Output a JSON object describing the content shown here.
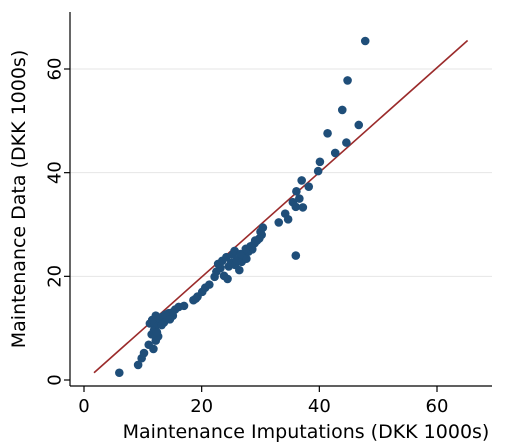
{
  "chart_data": {
    "type": "scatter",
    "title": "",
    "xlabel": "Maintenance Imputations (DKK 1000s)",
    "ylabel": "Maintenance Data (DKK 1000s)",
    "xlim": [
      0,
      70
    ],
    "ylim": [
      0,
      70
    ],
    "x_ticks": [
      0,
      20,
      40,
      60
    ],
    "y_ticks": [
      0,
      20,
      40,
      60
    ],
    "x_tick_labels": [
      "0",
      "20",
      "40",
      "60"
    ],
    "y_tick_labels": [
      "0",
      "20",
      "40",
      "60"
    ],
    "grid": "horizontal",
    "colors": {
      "points": "#1f4e79",
      "fit_line": "#9b2b2b",
      "grid": "#e6e6e6",
      "axis": "#000000"
    },
    "series": [
      {
        "type": "scatter",
        "points": [
          [
            6.0,
            1.4
          ],
          [
            9.2,
            2.9
          ],
          [
            9.8,
            4.2
          ],
          [
            10.2,
            5.2
          ],
          [
            11.0,
            6.8
          ],
          [
            11.8,
            6.0
          ],
          [
            12.2,
            7.6
          ],
          [
            12.6,
            8.4
          ],
          [
            11.5,
            8.8
          ],
          [
            11.9,
            9.6
          ],
          [
            12.1,
            10.3
          ],
          [
            12.5,
            10.8
          ],
          [
            13.0,
            11.2
          ],
          [
            11.2,
            10.9
          ],
          [
            11.6,
            11.6
          ],
          [
            12.8,
            11.9
          ],
          [
            13.3,
            12.2
          ],
          [
            13.6,
            11.1
          ],
          [
            14.0,
            12.0
          ],
          [
            14.4,
            12.9
          ],
          [
            14.9,
            13.0
          ],
          [
            15.5,
            13.6
          ],
          [
            16.1,
            14.1
          ],
          [
            13.2,
            10.6
          ],
          [
            12.4,
            9.2
          ],
          [
            15.1,
            12.4
          ],
          [
            13.8,
            12.6
          ],
          [
            14.6,
            11.7
          ],
          [
            12.2,
            12.4
          ],
          [
            17.0,
            14.3
          ],
          [
            18.6,
            15.4
          ],
          [
            19.3,
            16.1
          ],
          [
            19.0,
            15.7
          ],
          [
            20.1,
            17.0
          ],
          [
            20.6,
            17.8
          ],
          [
            21.3,
            18.4
          ],
          [
            22.2,
            19.9
          ],
          [
            22.5,
            20.9
          ],
          [
            23.2,
            21.6
          ],
          [
            23.8,
            20.1
          ],
          [
            24.4,
            19.5
          ],
          [
            24.6,
            21.9
          ],
          [
            25.0,
            22.6
          ],
          [
            25.7,
            22.2
          ],
          [
            26.0,
            23.1
          ],
          [
            26.4,
            21.2
          ],
          [
            26.8,
            22.8
          ],
          [
            27.1,
            24.0
          ],
          [
            27.6,
            23.4
          ],
          [
            28.0,
            24.8
          ],
          [
            28.6,
            25.2
          ],
          [
            29.0,
            26.4
          ],
          [
            29.4,
            26.9
          ],
          [
            29.8,
            27.3
          ],
          [
            30.2,
            28.0
          ],
          [
            30.4,
            29.4
          ],
          [
            22.8,
            22.4
          ],
          [
            23.5,
            23.0
          ],
          [
            24.2,
            23.7
          ],
          [
            25.3,
            24.2
          ],
          [
            25.6,
            24.9
          ],
          [
            26.6,
            24.3
          ],
          [
            27.5,
            25.3
          ],
          [
            28.3,
            25.8
          ],
          [
            29.1,
            26.9
          ],
          [
            30.0,
            28.6
          ],
          [
            33.1,
            30.4
          ],
          [
            34.2,
            32.1
          ],
          [
            34.7,
            31.0
          ],
          [
            35.5,
            34.3
          ],
          [
            36.0,
            33.4
          ],
          [
            36.6,
            35.0
          ],
          [
            37.2,
            33.3
          ],
          [
            36.1,
            36.4
          ],
          [
            37.0,
            38.5
          ],
          [
            38.2,
            37.3
          ],
          [
            39.8,
            40.3
          ],
          [
            40.1,
            42.1
          ],
          [
            41.4,
            47.6
          ],
          [
            42.7,
            43.8
          ],
          [
            44.6,
            45.8
          ],
          [
            46.7,
            49.2
          ],
          [
            43.9,
            52.1
          ],
          [
            44.8,
            57.8
          ],
          [
            47.8,
            65.4
          ],
          [
            36.0,
            24.0
          ]
        ]
      },
      {
        "type": "line",
        "points": [
          [
            1.7,
            1.4
          ],
          [
            65.2,
            65.5
          ]
        ]
      }
    ]
  }
}
